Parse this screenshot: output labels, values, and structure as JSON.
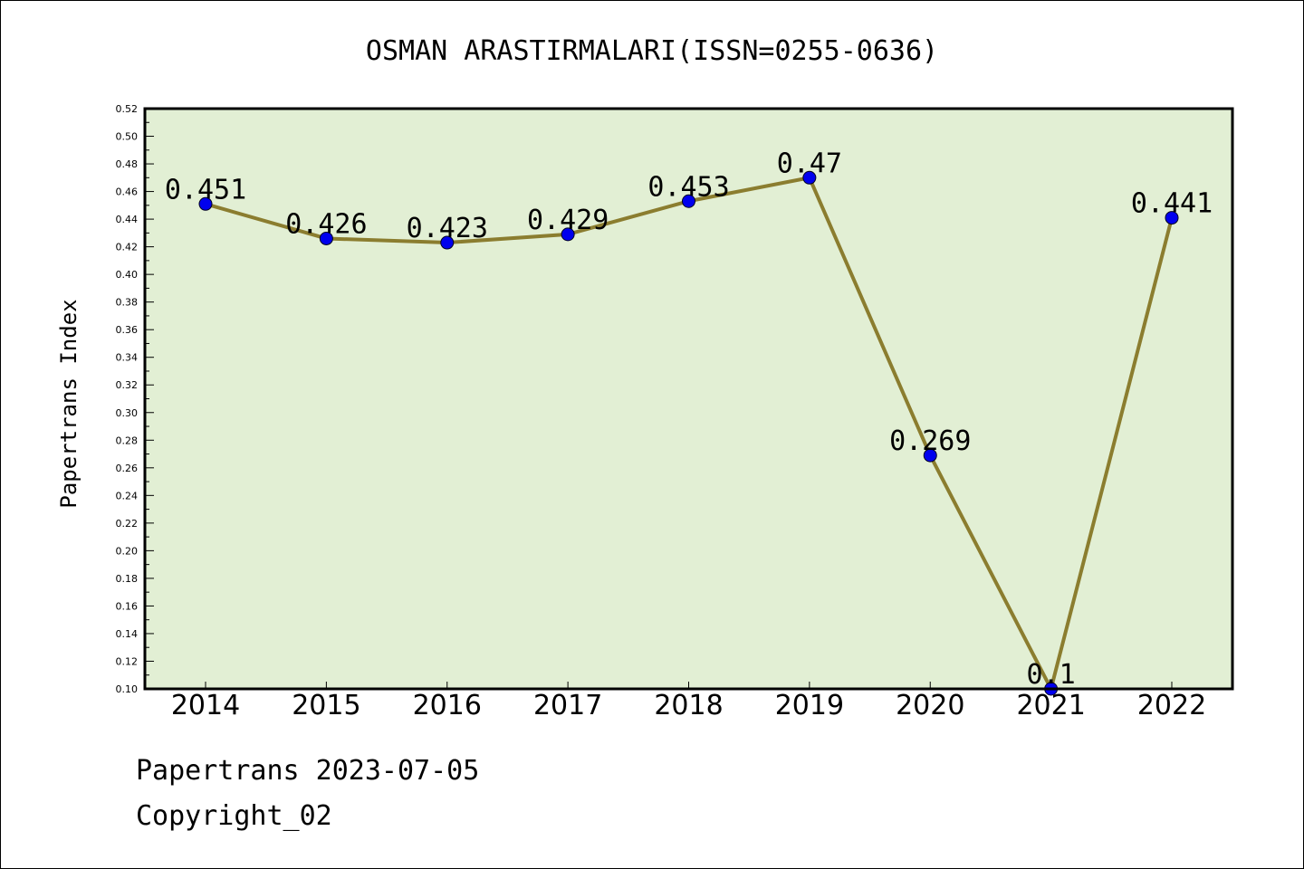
{
  "chart_data": {
    "type": "line",
    "title": "OSMAN ARASTIRMALARI(ISSN=0255-0636)",
    "xlabel": "",
    "ylabel": "Papertrans Index",
    "categories": [
      "2014",
      "2015",
      "2016",
      "2017",
      "2018",
      "2019",
      "2020",
      "2021",
      "2022"
    ],
    "values": [
      0.451,
      0.426,
      0.423,
      0.429,
      0.453,
      0.47,
      0.269,
      0.1,
      0.441
    ],
    "data_labels": [
      "0.451",
      "0.426",
      "0.423",
      "0.429",
      "0.453",
      "0.47",
      "0.269",
      "0.1",
      "0.441"
    ],
    "ylim": [
      0.1,
      0.52
    ],
    "yticks": [
      "0.10",
      "0.12",
      "0.14",
      "0.16",
      "0.18",
      "0.20",
      "0.22",
      "0.24",
      "0.26",
      "0.28",
      "0.30",
      "0.32",
      "0.34",
      "0.36",
      "0.38",
      "0.40",
      "0.42",
      "0.44",
      "0.46",
      "0.48",
      "0.50",
      "0.52"
    ],
    "grid": false,
    "legend": "none",
    "colors": {
      "plot_bg": "#e2efd4",
      "line": "#8b7d2f",
      "marker": "#0000ee"
    }
  },
  "footer": {
    "line1": "Papertrans 2023-07-05",
    "line2": "Copyright_02"
  }
}
